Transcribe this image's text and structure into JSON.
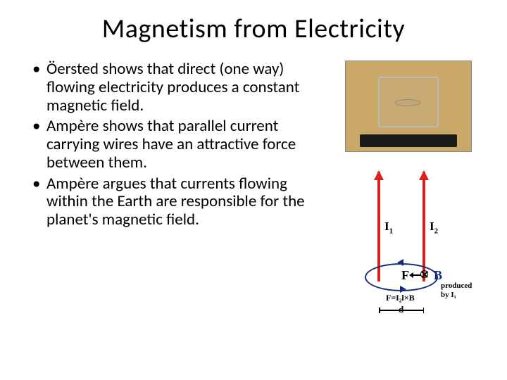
{
  "title": "Magnetism from Electricity",
  "bullets": [
    "Öersted shows that direct (one way) flowing electricity produces a constant magnetic field.",
    "Ampère shows that parallel current carrying wires have an attractive force between them.",
    "Ampère argues that currents flowing within the Earth are responsible for the planet's magnetic field."
  ],
  "diagram": {
    "type": "physics-diagram",
    "wire_color": "#d92020",
    "field_color": "#142a7a",
    "background_color": "#ffffff",
    "i1_label": "I",
    "i1_sub": "1",
    "i2_label": "I",
    "i2_sub": "2",
    "f_label": "F",
    "b_label": "B",
    "formula": "F=I₂l×B",
    "produced_line1": "produced",
    "produced_line2": "by I₁",
    "d_label": "d"
  },
  "typography": {
    "title_fontsize": 38,
    "body_fontsize": 23,
    "font_family": "Calibri"
  }
}
